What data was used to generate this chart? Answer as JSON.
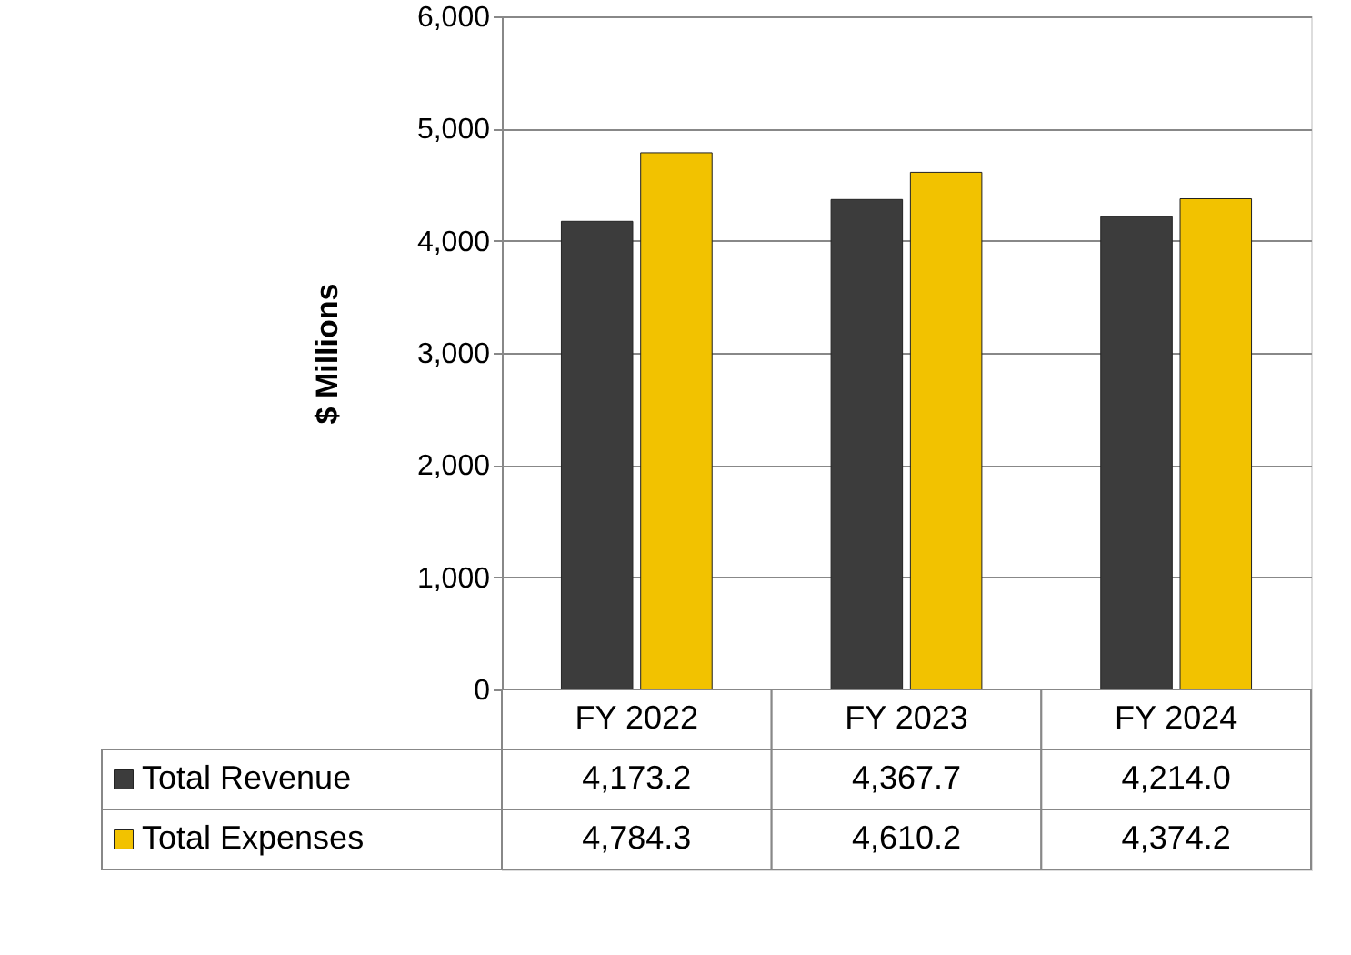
{
  "chart_data": {
    "type": "bar",
    "ylabel": "$ Millions",
    "categories": [
      "FY 2022",
      "FY 2023",
      "FY 2024"
    ],
    "series": [
      {
        "name": "Total Revenue",
        "color": "#3c3c3c",
        "values": [
          4173.2,
          4367.7,
          4214.0
        ],
        "value_labels": [
          "4,173.2",
          "4,367.7",
          "4,214.0"
        ]
      },
      {
        "name": "Total Expenses",
        "color": "#f2c200",
        "values": [
          4784.3,
          4610.2,
          4374.2
        ],
        "value_labels": [
          "4,784.3",
          "4,610.2",
          "4,374.2"
        ]
      }
    ],
    "ylim": [
      0,
      6000
    ],
    "yticks": [
      0,
      {
        "value": 1000,
        "label": "1,000"
      },
      {
        "value": 2000,
        "label": "2,000"
      },
      {
        "value": 3000,
        "label": "3,000"
      },
      {
        "value": 4000,
        "label": "4,000"
      },
      {
        "value": 5000,
        "label": "5,000"
      },
      {
        "value": 6000,
        "label": "6,000"
      }
    ],
    "grid": "y",
    "legend": "bottom"
  }
}
